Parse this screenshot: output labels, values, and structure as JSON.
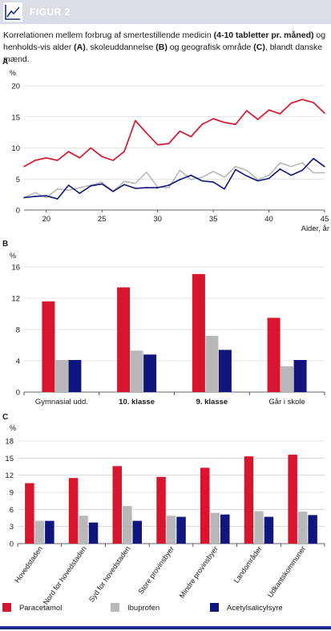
{
  "header": {
    "title": "FIGUR 2",
    "icon": "line-chart-icon"
  },
  "caption": {
    "part1": "Korrelationen mellem forbrug af smertestillende medicin ",
    "bold1": "(4-10 tabletter pr. måned)",
    "part2": " og henholds-vis alder ",
    "bold2": "(A)",
    "part3": ", skoleuddannelse ",
    "bold3": "(B)",
    "part4": " og geografisk område ",
    "bold4": "(C)",
    "part5": ", blandt danske mænd."
  },
  "colors": {
    "paracetamol": "#d9152d",
    "ibuprofen": "#b8b8b8",
    "acetylsalicylsyre": "#10167e",
    "footer": "#1c2f8f"
  },
  "chart_data": [
    {
      "panel": "A",
      "type": "line",
      "ylabel": "%",
      "xlabel": "Alder, år",
      "ylim": [
        0,
        20
      ],
      "yticks": [
        0,
        5,
        10,
        15,
        20
      ],
      "xlim": [
        18,
        45
      ],
      "xticks": [
        20,
        25,
        30,
        35,
        40,
        45
      ],
      "x": [
        18,
        19,
        20,
        21,
        22,
        23,
        24,
        25,
        26,
        27,
        28,
        29,
        30,
        31,
        32,
        33,
        34,
        35,
        36,
        37,
        38,
        39,
        40,
        41,
        42,
        43,
        44,
        45
      ],
      "series": [
        {
          "name": "Paracetamol",
          "color": "#d9152d",
          "values": [
            7.0,
            8.0,
            8.4,
            8.0,
            9.4,
            8.4,
            10.0,
            8.6,
            8.0,
            9.4,
            14.4,
            12.4,
            10.5,
            10.7,
            12.7,
            11.8,
            13.8,
            14.7,
            14.1,
            13.8,
            16.0,
            14.6,
            16.1,
            15.5,
            17.2,
            17.8,
            17.3,
            15.6
          ]
        },
        {
          "name": "Ibuprofen",
          "color": "#b8b8b8",
          "values": [
            2.0,
            2.8,
            2.0,
            3.4,
            3.2,
            3.6,
            4.0,
            4.5,
            3.0,
            4.6,
            4.3,
            6.1,
            3.7,
            3.6,
            6.4,
            4.9,
            5.3,
            6.2,
            5.3,
            7.0,
            6.4,
            4.9,
            5.6,
            7.6,
            7.0,
            7.6,
            6.0,
            6.0
          ]
        },
        {
          "name": "Acetylsalicylsyre",
          "color": "#10167e",
          "values": [
            2.0,
            2.2,
            2.3,
            1.8,
            4.0,
            2.7,
            3.9,
            4.2,
            3.0,
            4.1,
            3.5,
            3.6,
            3.6,
            4.0,
            4.9,
            5.6,
            4.7,
            4.5,
            3.4,
            6.5,
            5.5,
            4.7,
            5.1,
            6.6,
            5.6,
            6.4,
            8.3,
            7.0
          ]
        }
      ]
    },
    {
      "panel": "B",
      "type": "bar",
      "ylabel": "%",
      "ylim": [
        0,
        16
      ],
      "yticks": [
        0,
        4,
        8,
        12,
        16
      ],
      "categories": [
        "Gymnasial udd.",
        "10. klasse",
        "9. klasse",
        "Går i skole"
      ],
      "series": [
        {
          "name": "Paracetamol",
          "color": "#d9152d",
          "values": [
            11.6,
            13.4,
            15.1,
            9.5
          ]
        },
        {
          "name": "Ibuprofen",
          "color": "#b8b8b8",
          "values": [
            4.1,
            5.3,
            7.2,
            3.3
          ]
        },
        {
          "name": "Acetylsalicylsyre",
          "color": "#10167e",
          "values": [
            4.1,
            4.8,
            5.4,
            4.1
          ]
        }
      ]
    },
    {
      "panel": "C",
      "type": "bar",
      "ylabel": "%",
      "ylim": [
        0,
        18
      ],
      "yticks": [
        0,
        3,
        6,
        9,
        12,
        15,
        18
      ],
      "categories": [
        "Hovedstaden",
        "Nord for hovedstaden",
        "Syd for hovedstaden",
        "Store provinsbyer",
        "Mindre provinsbyer",
        "Landområder",
        "Udkantskommuner"
      ],
      "series": [
        {
          "name": "Paracetamol",
          "color": "#d9152d",
          "values": [
            10.6,
            11.5,
            13.6,
            11.7,
            13.3,
            15.3,
            15.6
          ]
        },
        {
          "name": "Ibuprofen",
          "color": "#b8b8b8",
          "values": [
            4.0,
            4.9,
            6.6,
            4.9,
            5.4,
            5.7,
            5.6
          ]
        },
        {
          "name": "Acetylsalicylsyre",
          "color": "#10167e",
          "values": [
            4.0,
            3.7,
            4.0,
            4.7,
            5.1,
            4.7,
            5.0
          ]
        }
      ]
    }
  ],
  "legend": {
    "placement": "bottom",
    "items": [
      {
        "label": "Paracetamol",
        "color": "#d9152d"
      },
      {
        "label": "Ibuprofen",
        "color": "#b8b8b8"
      },
      {
        "label": "Acetylsalicylsyre",
        "color": "#10167e"
      }
    ]
  }
}
